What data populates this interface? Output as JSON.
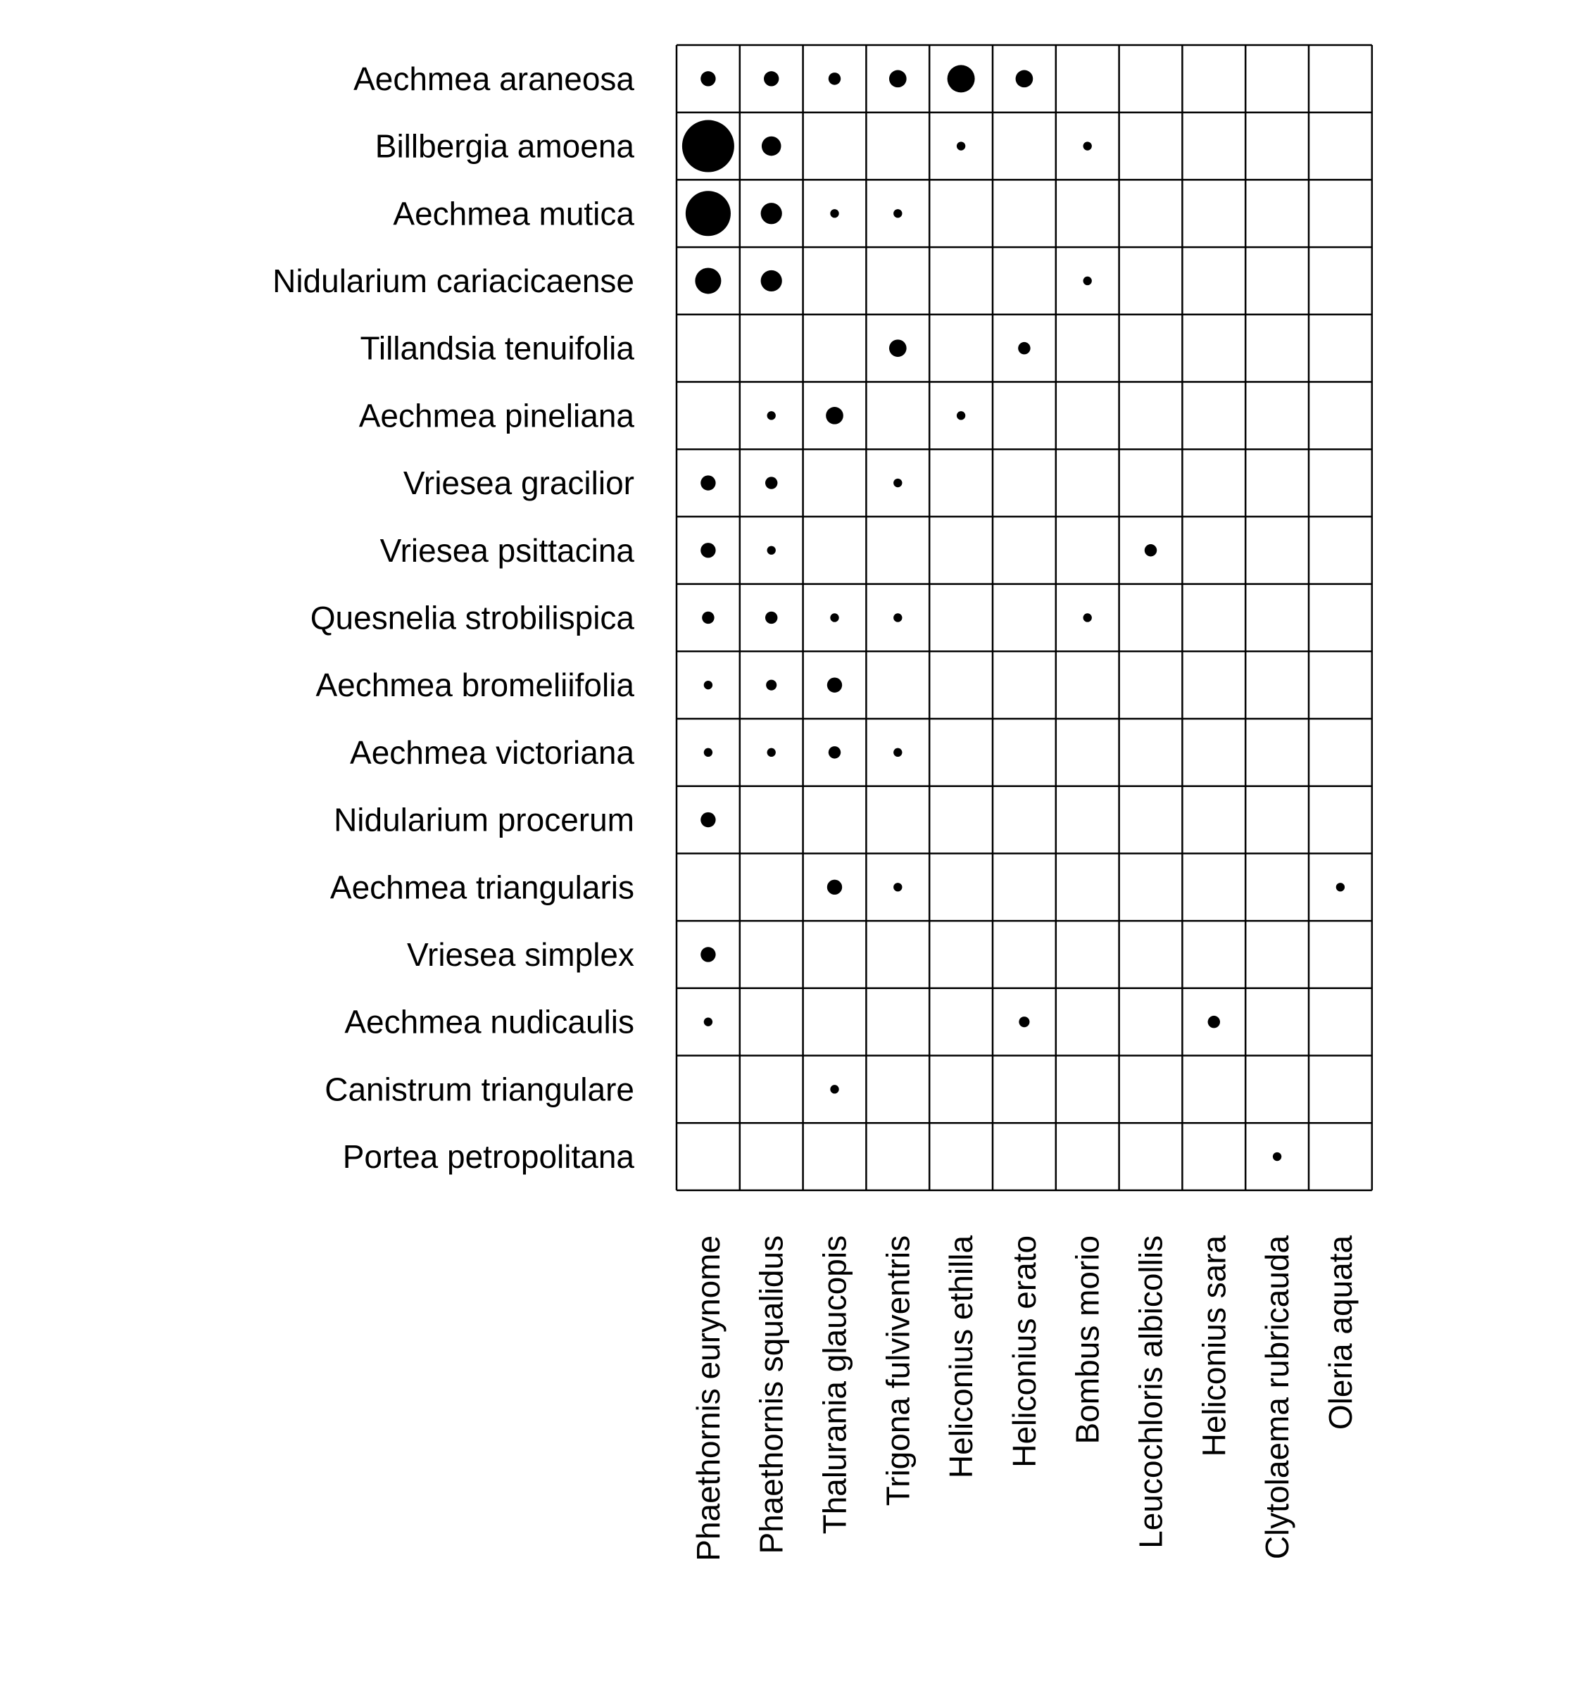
{
  "chart_data": {
    "type": "bubble-matrix",
    "title": "",
    "xlabel": "",
    "ylabel": "",
    "grid": true,
    "legend": "none",
    "rows": [
      "Aechmea araneosa",
      "Billbergia amoena",
      "Aechmea mutica",
      "Nidularium cariacicaense",
      "Tillandsia tenuifolia",
      "Aechmea pineliana",
      "Vriesea gracilior",
      "Vriesea psittacina",
      "Quesnelia strobilispica",
      "Aechmea bromeliifolia",
      "Aechmea victoriana",
      "Nidularium procerum",
      "Aechmea triangularis",
      "Vriesea simplex",
      "Aechmea nudicaulis",
      "Canistrum triangulare",
      "Portea petropolitana"
    ],
    "columns": [
      "Phaethornis eurynome",
      "Phaethornis squalidus",
      "Thalurania glaucopis",
      "Trigona fulviventris",
      "Heliconius ethilla",
      "Heliconius erato",
      "Bombus morio",
      "Leucochloris albicollis",
      "Heliconius sara",
      "Clytolaema rubricauda",
      "Oleria aquata"
    ],
    "values": [
      [
        3,
        3,
        2,
        4,
        10,
        4,
        0,
        0,
        0,
        0,
        0
      ],
      [
        36,
        5,
        0,
        0,
        1,
        0,
        1,
        0,
        0,
        0,
        0
      ],
      [
        27,
        6,
        1,
        1,
        0,
        0,
        0,
        0,
        0,
        0,
        0
      ],
      [
        9,
        6,
        0,
        0,
        0,
        0,
        1,
        0,
        0,
        0,
        0
      ],
      [
        0,
        0,
        0,
        4,
        0,
        2,
        0,
        0,
        0,
        0,
        0
      ],
      [
        0,
        1,
        4,
        0,
        1,
        0,
        0,
        0,
        0,
        0,
        0
      ],
      [
        3,
        2,
        0,
        1,
        0,
        0,
        0,
        0,
        0,
        0,
        0
      ],
      [
        3,
        1,
        0,
        0,
        0,
        0,
        0,
        2,
        0,
        0,
        0
      ],
      [
        2,
        2,
        1,
        1,
        0,
        0,
        1,
        0,
        0,
        0,
        0
      ],
      [
        1,
        1.5,
        3,
        0,
        0,
        0,
        0,
        0,
        0,
        0,
        0
      ],
      [
        1,
        1,
        2,
        1,
        0,
        0,
        0,
        0,
        0,
        0,
        0
      ],
      [
        3,
        0,
        0,
        0,
        0,
        0,
        0,
        0,
        0,
        0,
        0
      ],
      [
        0,
        0,
        3,
        1,
        0,
        0,
        0,
        0,
        0,
        0,
        1
      ],
      [
        3,
        0,
        0,
        0,
        0,
        0,
        0,
        0,
        0,
        0,
        0
      ],
      [
        1,
        0,
        0,
        0,
        0,
        1.5,
        0,
        0,
        2,
        0,
        0
      ],
      [
        0,
        0,
        1,
        0,
        0,
        0,
        0,
        0,
        0,
        0,
        0
      ],
      [
        0,
        0,
        0,
        0,
        0,
        0,
        0,
        0,
        0,
        1,
        0
      ]
    ]
  },
  "colors": {
    "background": "#ffffff",
    "grid": "#000000",
    "marker": "#000000",
    "text": "#000000"
  }
}
